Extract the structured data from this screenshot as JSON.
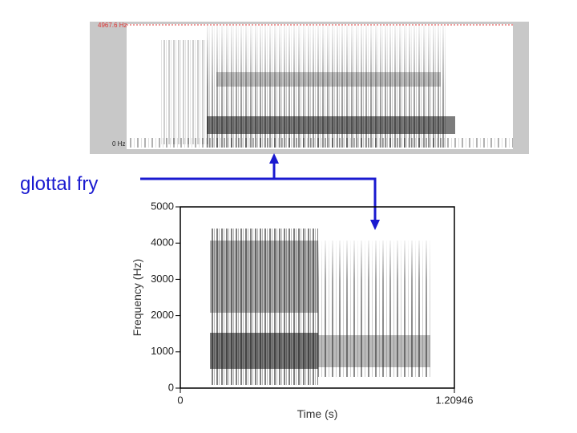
{
  "annotation": "glottal fry",
  "top_spectrogram": {
    "top_label": "4967.6 Hz",
    "bottom_label": "0 Hz"
  },
  "bottom_spectrogram": {
    "ylabel": "Frequency (Hz)",
    "xlabel": "Time (s)",
    "ylim": [
      0,
      5000
    ],
    "yticks": [
      0,
      1000,
      2000,
      3000,
      4000,
      5000
    ],
    "xlim": [
      0,
      1.20946
    ],
    "xticks": [
      0,
      1.20946
    ]
  }
}
